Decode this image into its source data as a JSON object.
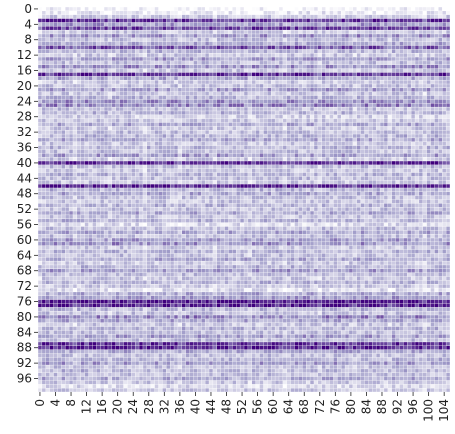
{
  "chart_data": {
    "type": "heatmap",
    "title": "",
    "xlabel": "",
    "ylabel": "",
    "n_rows": 100,
    "n_cols": 106,
    "x_tick_labels": [
      "0",
      "4",
      "8",
      "12",
      "16",
      "20",
      "24",
      "28",
      "32",
      "36",
      "40",
      "44",
      "48",
      "52",
      "56",
      "60",
      "64",
      "68",
      "72",
      "76",
      "80",
      "84",
      "88",
      "92",
      "96",
      "100",
      "104"
    ],
    "y_tick_labels": [
      "0",
      "4",
      "8",
      "12",
      "16",
      "20",
      "24",
      "28",
      "32",
      "36",
      "40",
      "44",
      "48",
      "52",
      "56",
      "60",
      "64",
      "68",
      "72",
      "76",
      "80",
      "84",
      "88",
      "92",
      "96"
    ],
    "value_range": [
      0,
      1
    ],
    "row_mean_levels": [
      0.05,
      0.12,
      0.28,
      0.85,
      0.5,
      0.8,
      0.3,
      0.55,
      0.35,
      0.45,
      0.75,
      0.4,
      0.3,
      0.5,
      0.35,
      0.55,
      0.3,
      0.85,
      0.45,
      0.3,
      0.35,
      0.5,
      0.3,
      0.4,
      0.55,
      0.6,
      0.35,
      0.4,
      0.25,
      0.3,
      0.45,
      0.3,
      0.35,
      0.4,
      0.45,
      0.3,
      0.4,
      0.35,
      0.5,
      0.3,
      0.9,
      0.35,
      0.3,
      0.4,
      0.35,
      0.3,
      0.9,
      0.4,
      0.45,
      0.35,
      0.3,
      0.4,
      0.35,
      0.45,
      0.3,
      0.4,
      0.2,
      0.35,
      0.45,
      0.35,
      0.5,
      0.55,
      0.3,
      0.4,
      0.35,
      0.45,
      0.3,
      0.4,
      0.5,
      0.35,
      0.3,
      0.4,
      0.3,
      0.2,
      0.45,
      0.5,
      0.95,
      0.9,
      0.4,
      0.35,
      0.6,
      0.45,
      0.3,
      0.4,
      0.35,
      0.5,
      0.4,
      0.85,
      0.9,
      0.45,
      0.35,
      0.4,
      0.5,
      0.35,
      0.4,
      0.35,
      0.45,
      0.3,
      0.2,
      0.3
    ],
    "colormap": {
      "low": "#ffffff",
      "mid": "#9e9ac8",
      "high": "#3f007d"
    },
    "gridlines": "white"
  }
}
